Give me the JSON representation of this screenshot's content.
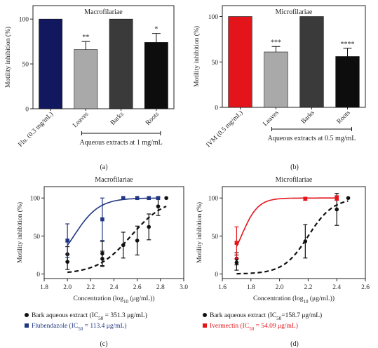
{
  "chart_data": [
    {
      "panel_label": "(a)",
      "type": "bar",
      "title": "Macrofilariae",
      "ylabel": "Motility inhibition (%)",
      "ylim": [
        0,
        115
      ],
      "yticks": [
        "0",
        "50",
        "100"
      ],
      "categories": [
        "Flu. (0.3 mg/mL)",
        "Leaves",
        "Barks",
        "Roots"
      ],
      "values": [
        100,
        66,
        100,
        74
      ],
      "errors": [
        0,
        9,
        0,
        10
      ],
      "significance": [
        "",
        "**",
        "",
        "*"
      ],
      "colors": [
        "#12185e",
        "#a9a9a9",
        "#3a3a3a",
        "#0d0d0d"
      ],
      "group_label": "Aqueous extracts at 1 mg/mL",
      "group_span": [
        1,
        3
      ]
    },
    {
      "panel_label": "(b)",
      "type": "bar",
      "title": "Microfilariae",
      "ylabel": "Motility inhibition (%)",
      "ylim": [
        0,
        112
      ],
      "yticks": [
        "0",
        "50",
        "100"
      ],
      "categories": [
        "IVM (0.5 mg/mL)",
        "Leaves",
        "Barks",
        "Roots"
      ],
      "values": [
        100,
        61,
        100,
        56
      ],
      "errors": [
        0,
        6,
        0,
        9
      ],
      "significance": [
        "",
        "***",
        "",
        "****"
      ],
      "colors": [
        "#e3151b",
        "#a9a9a9",
        "#3a3a3a",
        "#0d0d0d"
      ],
      "group_label": "Aqueous extracts at 0.5 mg/mL",
      "group_span": [
        1,
        3
      ]
    },
    {
      "panel_label": "(c)",
      "type": "scatter",
      "title": "Macrofilariae",
      "xlabel_main": "Concentration (log",
      "xlabel_sub": "10",
      "xlabel_tail": " (μg/mL))",
      "ylabel": "Motility inhibition (%)",
      "xlim": [
        1.8,
        3.0
      ],
      "ylim": [
        -6,
        115
      ],
      "xticks": [
        "1.8",
        "2.0",
        "2.2",
        "2.4",
        "2.6",
        "2.8",
        "3.0"
      ],
      "yticks": [
        "0",
        "50",
        "100"
      ],
      "series": [
        {
          "name": "Bark aqueous extract (IC50 = 351.3 μg/mL)",
          "legend_main": "Bark aqueous extract (IC",
          "legend_sub": "50",
          "legend_tail": " = 351.3 μg/mL)",
          "color": "#111111",
          "marker": "circle",
          "fit": "dashed",
          "ic50_log": 2.5457,
          "hill": 3.0,
          "x": [
            2.0,
            2.0,
            2.3,
            2.3,
            2.48,
            2.6,
            2.7,
            2.78,
            2.85
          ],
          "y": [
            16,
            26,
            27,
            20,
            38,
            44,
            62,
            89,
            100
          ],
          "err": [
            10,
            10,
            16,
            10,
            17,
            19,
            17,
            12,
            0
          ]
        },
        {
          "name": "Flubendazole (IC50 = 113.4 μg/mL)",
          "legend_main": "Flubendazole (IC",
          "legend_sub": "50",
          "legend_tail": " = 113.4 μg/mL)",
          "color": "#203680",
          "marker": "square",
          "fit": "solid",
          "ic50_log": 2.0546,
          "hill": 4.0,
          "x": [
            2.0,
            2.3,
            2.48,
            2.6,
            2.7,
            2.78
          ],
          "y": [
            44,
            72,
            100,
            100,
            100,
            100
          ],
          "err": [
            22,
            28,
            0,
            0,
            0,
            0
          ]
        }
      ]
    },
    {
      "panel_label": "(d)",
      "type": "scatter",
      "title": "Microfilariae",
      "xlabel_main": "Concentration (log",
      "xlabel_sub": "10",
      "xlabel_tail": " (μg/mL))",
      "ylabel": "Motility inhibition (%)",
      "xlim": [
        1.6,
        2.6
      ],
      "ylim": [
        -6,
        115
      ],
      "xticks": [
        "1.6",
        "1.8",
        "2.0",
        "2.2",
        "2.4",
        "2.6"
      ],
      "yticks": [
        "0",
        "50",
        "100"
      ],
      "series": [
        {
          "name": "Bark aqueous extract (IC50=158.7 μg/mL)",
          "legend_main": "Bark aqueous extract (IC",
          "legend_sub": "50",
          "legend_tail": "=158.7 μg/mL)",
          "color": "#111111",
          "marker": "circle",
          "fit": "dashed",
          "ic50_log": 2.2006,
          "hill": 5.0,
          "x": [
            1.7,
            1.7,
            2.18,
            2.4,
            2.48
          ],
          "y": [
            15,
            20,
            43,
            85,
            100
          ],
          "err": [
            10,
            8,
            22,
            21,
            0
          ]
        },
        {
          "name": "Ivermectin (IC50 = 54.09 μg/mL)",
          "legend_main": "Ivermectin (IC",
          "legend_sub": "50",
          "legend_tail": " = 54.09 μg/mL)",
          "color": "#e3151b",
          "marker": "square",
          "fit": "solid",
          "ic50_log": 1.7331,
          "hill": 7.5,
          "x": [
            1.7,
            2.18,
            2.4
          ],
          "y": [
            41,
            99,
            100
          ],
          "err": [
            21,
            2,
            3
          ]
        }
      ]
    }
  ]
}
